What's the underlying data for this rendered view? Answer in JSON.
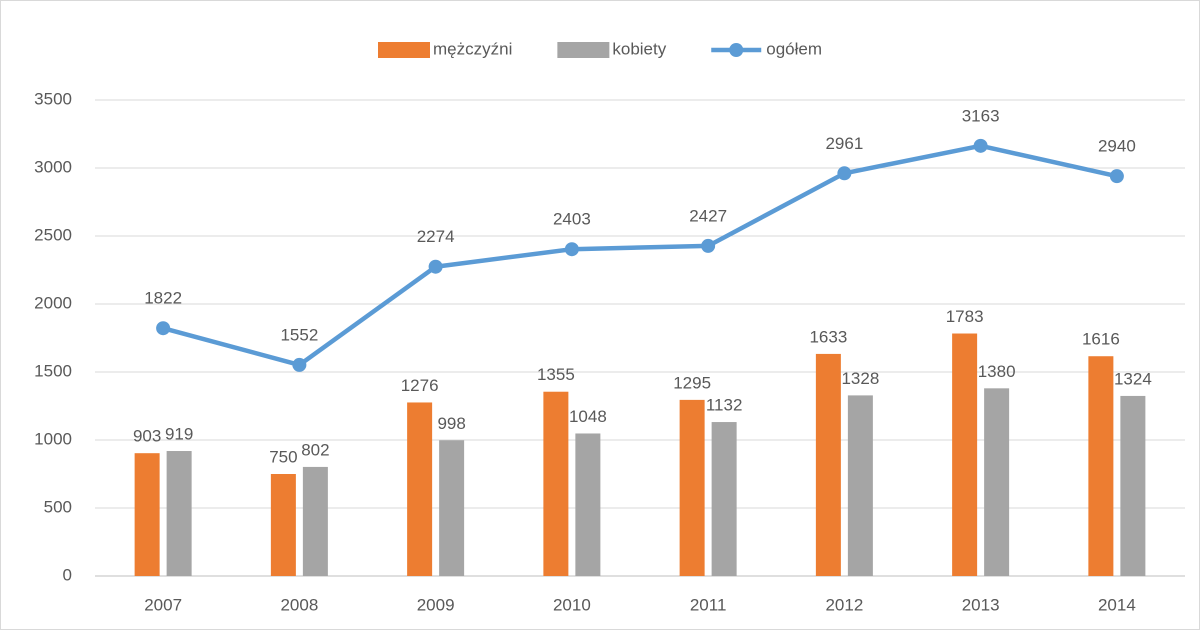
{
  "chart_data": {
    "type": "bar",
    "categories": [
      "2007",
      "2008",
      "2009",
      "2010",
      "2011",
      "2012",
      "2013",
      "2014"
    ],
    "series": [
      {
        "name": "mężczyźni",
        "type": "bar",
        "color": "#ed7d31",
        "values": [
          903,
          750,
          1276,
          1355,
          1295,
          1633,
          1783,
          1616
        ]
      },
      {
        "name": "kobiety",
        "type": "bar",
        "color": "#a5a5a5",
        "values": [
          919,
          802,
          998,
          1048,
          1132,
          1328,
          1380,
          1324
        ]
      },
      {
        "name": "ogółem",
        "type": "line",
        "color": "#5b9bd5",
        "values": [
          1822,
          1552,
          2274,
          2403,
          2427,
          2961,
          3163,
          2940
        ]
      }
    ],
    "ylim": [
      0,
      3500
    ],
    "yticks": [
      0,
      500,
      1000,
      1500,
      2000,
      2500,
      3000,
      3500
    ],
    "grid": true,
    "legend": "top"
  }
}
